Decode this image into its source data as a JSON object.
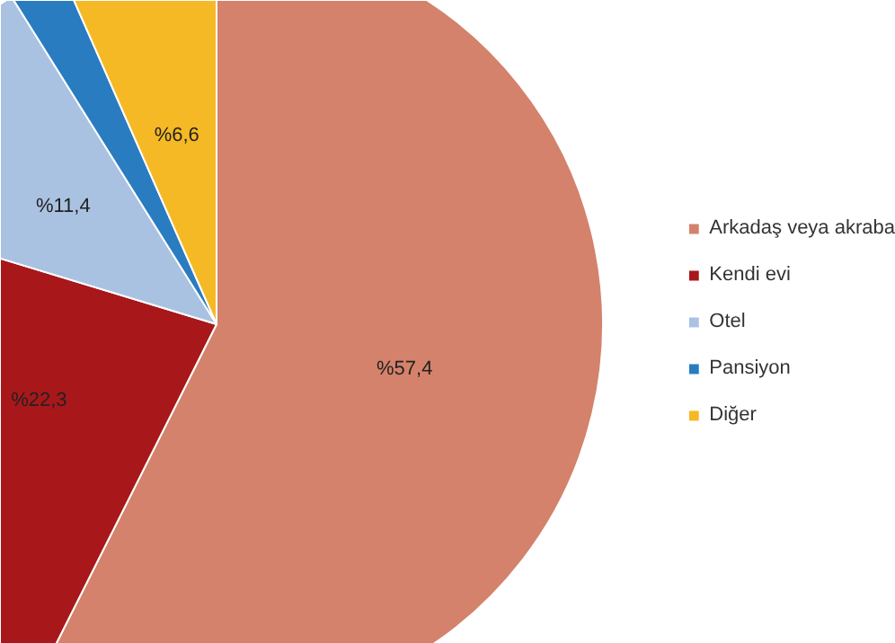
{
  "chart_data": {
    "type": "pie",
    "categories": [
      "Arkadaş veya akraba",
      "Kendi evi",
      "Otel",
      "Pansiyon",
      "Diğer"
    ],
    "values": [
      57.4,
      22.3,
      11.4,
      2.3,
      6.6
    ],
    "colors": [
      "#d4826b",
      "#a8171a",
      "#aac2e2",
      "#2a7cc1",
      "#f5b925"
    ],
    "value_labels": [
      "%57,4",
      "%22,3",
      "%11,4",
      null,
      "%6,6"
    ],
    "legend": "right"
  }
}
